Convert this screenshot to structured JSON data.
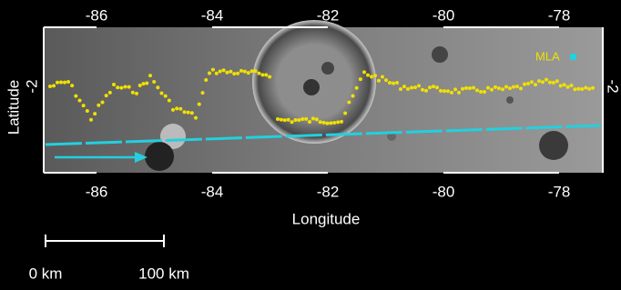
{
  "map": {
    "x_axis": {
      "title": "Longitude",
      "top_ticks": [
        "-86",
        "-84",
        "-82",
        "-80",
        "-78"
      ],
      "bottom_ticks": [
        "-86",
        "-84",
        "-82",
        "-80",
        "-78"
      ]
    },
    "y_axis": {
      "title": "Latitude",
      "left_ticks": [
        "-2"
      ],
      "right_ticks": [
        "-2"
      ]
    },
    "legend": {
      "label": "MLA"
    },
    "scale_bar": {
      "start": "0 km",
      "end": "100 km"
    }
  }
}
